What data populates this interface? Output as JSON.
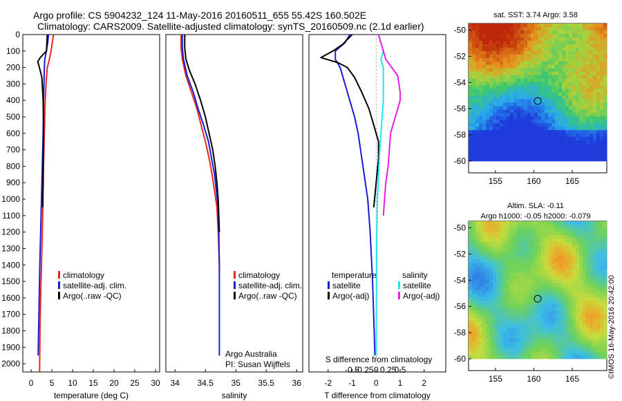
{
  "header": {
    "line1": "Argo profile: CS 5904232_124 11-May-2016 20160511_655 55.42S 160.502E",
    "line2": "Climatology: CARS2009. Satellite-adjusted climatology: synTS_20160509.nc (2.1d earlier)"
  },
  "colors": {
    "climatology": "#e8251e",
    "satellite_clim": "#1a1ad6",
    "argo": "#000000",
    "satellite_s": "#1ee6f0",
    "argo_s": "#e81ee8"
  },
  "chart_data": [
    {
      "type": "line",
      "panel": "temperature",
      "xlabel": "temperature (deg C)",
      "xticks": [
        0,
        5,
        10,
        15,
        20,
        25,
        30
      ],
      "xlim": [
        -2,
        31
      ],
      "ylim": [
        2050,
        0
      ],
      "yticks": [
        0,
        100,
        200,
        300,
        400,
        500,
        600,
        700,
        800,
        900,
        1000,
        1100,
        1200,
        1300,
        1400,
        1500,
        1600,
        1700,
        1800,
        1900,
        2000
      ],
      "legend": [
        "climatology",
        "satellite-adj. clim.",
        "Argo(..raw -QC)"
      ],
      "series": [
        {
          "name": "climatology",
          "color_key": "climatology",
          "x": [
            5.4,
            5.1,
            4.8,
            4.4,
            3.9,
            3.6,
            3.4,
            3.3,
            3.2,
            3.1,
            3.0,
            2.95,
            2.85,
            2.8,
            2.7,
            2.6,
            2.5,
            2.4,
            2.3,
            2.15,
            2.05
          ],
          "y": [
            0,
            50,
            100,
            150,
            200,
            300,
            400,
            500,
            600,
            700,
            800,
            900,
            1000,
            1100,
            1200,
            1300,
            1400,
            1500,
            1600,
            1800,
            2050
          ]
        },
        {
          "name": "satellite-adj. clim.",
          "color_key": "satellite_clim",
          "x": [
            4.2,
            4.0,
            3.7,
            3.3,
            3.2,
            3.1,
            3.0,
            2.95,
            2.9,
            2.8,
            2.7,
            2.6,
            2.5,
            2.3,
            2.1,
            1.95,
            1.8,
            1.7
          ],
          "y": [
            0,
            50,
            100,
            150,
            200,
            300,
            400,
            500,
            600,
            700,
            800,
            900,
            1000,
            1200,
            1400,
            1600,
            1800,
            1950
          ]
        },
        {
          "name": "Argo(..raw -QC)",
          "color_key": "argo",
          "x": [
            3.9,
            3.7,
            2.2,
            1.6,
            1.9,
            2.6,
            2.9,
            3.0,
            2.9,
            2.8
          ],
          "y": [
            0,
            100,
            140,
            165,
            190,
            260,
            400,
            550,
            800,
            1050
          ]
        }
      ]
    },
    {
      "type": "line",
      "panel": "salinity",
      "xlabel": "salinity",
      "xticks": [
        34,
        34.5,
        35,
        35.5,
        36
      ],
      "xlim": [
        33.85,
        36.1
      ],
      "ylim": [
        2050,
        0
      ],
      "legend": [
        "climatology",
        "satellite-adj. clim.",
        "Argo(..raw -QC)"
      ],
      "series": [
        {
          "name": "climatology",
          "color_key": "climatology",
          "x": [
            34.1,
            34.1,
            34.12,
            34.18,
            34.27,
            34.36,
            34.43,
            34.5,
            34.56,
            34.61,
            34.65,
            34.69,
            34.71,
            34.72,
            34.73,
            34.73
          ],
          "y": [
            0,
            80,
            150,
            250,
            350,
            450,
            550,
            650,
            750,
            850,
            950,
            1050,
            1200,
            1300,
            1400,
            1450
          ]
        },
        {
          "name": "satellite-adj. clim.",
          "color_key": "satellite_clim",
          "x": [
            34.12,
            34.12,
            34.14,
            34.2,
            34.3,
            34.38,
            34.47,
            34.55,
            34.6,
            34.65,
            34.68,
            34.71,
            34.72,
            34.73,
            34.73,
            34.73
          ],
          "y": [
            0,
            80,
            150,
            250,
            350,
            450,
            550,
            650,
            750,
            850,
            950,
            1050,
            1200,
            1400,
            1700,
            1950
          ]
        },
        {
          "name": "Argo(..raw -QC)",
          "color_key": "argo",
          "x": [
            34.16,
            34.16,
            34.18,
            34.24,
            34.33,
            34.42,
            34.5,
            34.56,
            34.62,
            34.66,
            34.69,
            34.71,
            34.72,
            34.73
          ],
          "y": [
            0,
            80,
            150,
            220,
            300,
            400,
            500,
            600,
            700,
            800,
            900,
            1000,
            1100,
            1200
          ]
        }
      ]
    },
    {
      "type": "line",
      "panel": "differences",
      "xlabel_top": "S difference from climatology",
      "xlabel_bottom": "T difference from climatology",
      "xticks_top": [
        "-0.5",
        "-0.25",
        "0",
        "0.25",
        "0.5"
      ],
      "xticks_bottom": [
        -2,
        -1,
        0,
        1,
        2
      ],
      "xlim": [
        -2.8,
        2.9
      ],
      "ylim": [
        2050,
        0
      ],
      "legend_temperature": {
        "title": "temperature",
        "items": [
          "satellite",
          "Argo(-adj)"
        ]
      },
      "legend_salinity": {
        "title": "salinity",
        "items": [
          "satellite",
          "Argo(-adj)"
        ]
      },
      "series": [
        {
          "name": "temperature satellite",
          "color_key": "satellite_clim",
          "x": [
            -1.1,
            -1.3,
            -1.7,
            -1.7,
            -1.5,
            -1.3,
            -1.1,
            -0.9,
            -0.75,
            -0.65,
            -0.5,
            -0.35,
            -0.25,
            -0.15,
            -0.05
          ],
          "y": [
            0,
            50,
            100,
            150,
            200,
            300,
            400,
            500,
            600,
            700,
            850,
            1000,
            1200,
            1500,
            1950
          ]
        },
        {
          "name": "temperature Argo(-adj)",
          "color_key": "argo",
          "x": [
            -1.0,
            -1.4,
            -1.8,
            -2.3,
            -1.6,
            -1.2,
            -0.9,
            -0.6,
            -0.3,
            -0.1,
            0.1,
            0.1,
            0.0,
            -0.1
          ],
          "y": [
            0,
            60,
            100,
            140,
            170,
            200,
            260,
            350,
            450,
            550,
            650,
            750,
            900,
            1050
          ]
        },
        {
          "name": "salinity satellite",
          "color_key": "satellite_s",
          "x": [
            0.1,
            0.2,
            0.3,
            0.2,
            0.3,
            0.3,
            0.3,
            0.25,
            0.2,
            0.15,
            0.1,
            0.05,
            0.02,
            0.0
          ],
          "y": [
            0,
            50,
            100,
            150,
            200,
            300,
            400,
            500,
            600,
            700,
            850,
            1000,
            1300,
            1950
          ]
        },
        {
          "name": "salinity Argo(-adj)",
          "color_key": "argo_s",
          "x": [
            0.1,
            0.2,
            0.3,
            0.4,
            0.9,
            1.0,
            1.0,
            0.8,
            0.6,
            0.55,
            0.5,
            0.4,
            0.35,
            0.3
          ],
          "y": [
            0,
            50,
            100,
            150,
            250,
            350,
            400,
            500,
            600,
            700,
            800,
            900,
            1000,
            1100
          ]
        }
      ]
    },
    {
      "type": "heatmap",
      "panel": "sst_map",
      "title": "sat. SST: 3.74  Argo: 3.58",
      "xticks": [
        155,
        160,
        165
      ],
      "yticks": [
        -50,
        -52,
        -54,
        -56,
        -58,
        -60
      ],
      "xlim": [
        151.5,
        169.5
      ],
      "ylim": [
        -60.9,
        -49.5
      ],
      "data_extent_lat": [
        -60,
        -49.5
      ],
      "argo_position": {
        "lon": 160.502,
        "lat": -55.42
      }
    },
    {
      "type": "heatmap",
      "panel": "sla_map",
      "title": "Altim. SLA: -0.11",
      "subtitle": "Argo h1000: -0.05 h2000: -0.079",
      "xticks": [
        155,
        160,
        165
      ],
      "yticks": [
        -50,
        -52,
        -54,
        -56,
        -58,
        -60
      ],
      "xlim": [
        151.5,
        169.5
      ],
      "ylim": [
        -60.9,
        -49.5
      ],
      "data_extent_lat": [
        -60,
        -49.5
      ],
      "argo_position": {
        "lon": 160.502,
        "lat": -55.42
      }
    }
  ],
  "legend_panel1": [
    "climatology",
    "satellite-adj. clim.",
    "Argo(..raw -QC)"
  ],
  "footer": {
    "credits_1": "Argo Australia",
    "credits_2": "PI: Susan Wijffels",
    "stamp": "©IMOS 16-May-2016 20:42:00"
  }
}
